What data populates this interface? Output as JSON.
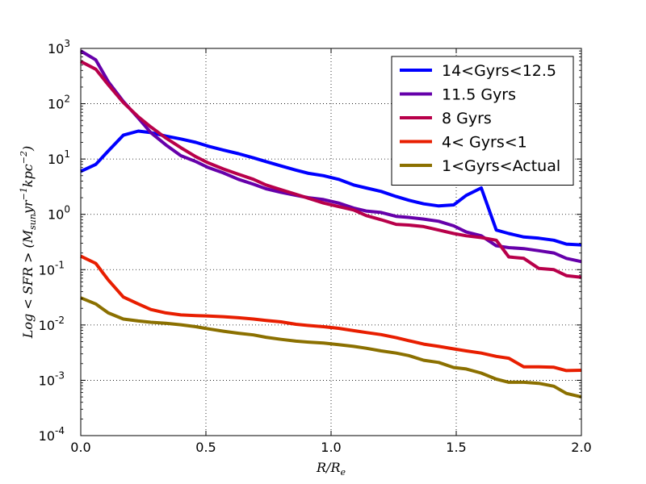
{
  "chart_data": {
    "type": "line",
    "title": "",
    "xlabel": "R/R_e",
    "ylabel": "Log < SFR > (M_sun yr^-1 kpc^-2)",
    "xscale": "linear",
    "yscale": "log",
    "xlim": [
      0.0,
      2.0
    ],
    "ylim": [
      0.0001,
      1000
    ],
    "x_ticks": [
      "0.0",
      "0.5",
      "1.0",
      "1.5",
      "2.0"
    ],
    "y_ticks": [
      {
        "base": "10",
        "exp": "-4"
      },
      {
        "base": "10",
        "exp": "-3"
      },
      {
        "base": "10",
        "exp": "-2"
      },
      {
        "base": "10",
        "exp": "-1"
      },
      {
        "base": "10",
        "exp": "0"
      },
      {
        "base": "10",
        "exp": "1"
      },
      {
        "base": "10",
        "exp": "2"
      },
      {
        "base": "10",
        "exp": "3"
      }
    ],
    "grid": true,
    "legend_position": "upper right",
    "x": [
      0.0,
      0.06,
      0.11,
      0.17,
      0.23,
      0.28,
      0.34,
      0.4,
      0.46,
      0.51,
      0.57,
      0.63,
      0.69,
      0.74,
      0.8,
      0.86,
      0.91,
      0.97,
      1.03,
      1.09,
      1.14,
      1.2,
      1.26,
      1.31,
      1.37,
      1.43,
      1.49,
      1.54,
      1.6,
      1.66,
      1.71,
      1.77,
      1.83,
      1.89,
      1.94,
      2.0
    ],
    "series": [
      {
        "name": "14<Gyrs<12.5",
        "color": "#0000ff",
        "values": [
          6.0,
          8.0,
          14.0,
          27.0,
          32.0,
          30.0,
          26.0,
          23.0,
          20.0,
          17.0,
          14.5,
          12.5,
          10.5,
          9.0,
          7.5,
          6.3,
          5.5,
          5.0,
          4.3,
          3.4,
          3.0,
          2.6,
          2.1,
          1.8,
          1.55,
          1.42,
          1.48,
          2.2,
          3.0,
          0.52,
          0.45,
          0.39,
          0.37,
          0.34,
          0.29,
          0.28
        ]
      },
      {
        "name": "11.5 Gyrs",
        "color": "#6600aa",
        "values": [
          900.0,
          620.0,
          250.0,
          110.0,
          55.0,
          30.0,
          18.0,
          11.5,
          9.0,
          7.0,
          5.6,
          4.3,
          3.5,
          2.9,
          2.5,
          2.2,
          2.0,
          1.85,
          1.6,
          1.3,
          1.15,
          1.08,
          0.92,
          0.88,
          0.82,
          0.75,
          0.62,
          0.48,
          0.41,
          0.27,
          0.25,
          0.24,
          0.22,
          0.2,
          0.16,
          0.14
        ]
      },
      {
        "name": "8 Gyrs",
        "color": "#b8004a",
        "values": [
          580.0,
          420.0,
          220.0,
          105.0,
          58.0,
          38.0,
          24.0,
          16.0,
          11.0,
          8.5,
          6.6,
          5.3,
          4.3,
          3.4,
          2.8,
          2.3,
          1.95,
          1.6,
          1.38,
          1.2,
          0.95,
          0.8,
          0.66,
          0.64,
          0.6,
          0.52,
          0.45,
          0.41,
          0.38,
          0.34,
          0.17,
          0.16,
          0.105,
          0.1,
          0.078,
          0.073
        ]
      },
      {
        "name": "4< Gyrs<1",
        "color": "#e81e00",
        "values": [
          0.175,
          0.13,
          0.065,
          0.032,
          0.024,
          0.019,
          0.0165,
          0.0152,
          0.0148,
          0.0145,
          0.0141,
          0.0135,
          0.0128,
          0.0121,
          0.0114,
          0.0103,
          0.0098,
          0.0093,
          0.0087,
          0.0079,
          0.0073,
          0.0067,
          0.0059,
          0.0052,
          0.0045,
          0.0041,
          0.0037,
          0.0034,
          0.0031,
          0.0027,
          0.0025,
          0.00175,
          0.00175,
          0.00172,
          0.0015,
          0.00152
        ]
      },
      {
        "name": "1<Gyrs<Actual",
        "color": "#8b7000",
        "values": [
          0.031,
          0.024,
          0.0165,
          0.0128,
          0.0118,
          0.0112,
          0.0107,
          0.0101,
          0.0093,
          0.0085,
          0.0077,
          0.0071,
          0.0066,
          0.006,
          0.0055,
          0.0051,
          0.0049,
          0.0047,
          0.0044,
          0.0041,
          0.0038,
          0.0034,
          0.0031,
          0.0028,
          0.0023,
          0.0021,
          0.0017,
          0.0016,
          0.00135,
          0.00105,
          0.00092,
          0.00092,
          0.00088,
          0.00078,
          0.00058,
          0.0005
        ]
      }
    ]
  }
}
